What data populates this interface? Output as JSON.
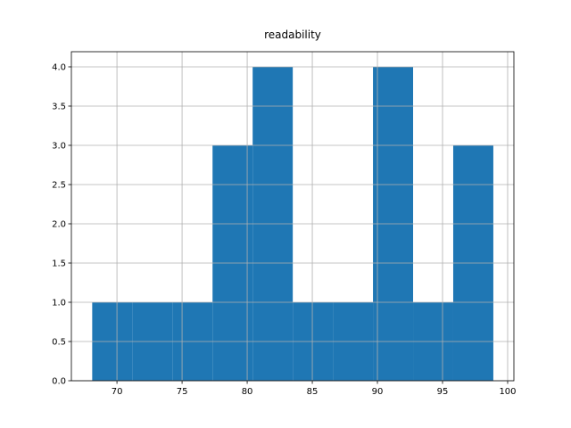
{
  "chart_data": {
    "type": "histogram",
    "title": "readability",
    "bins": [
      68.1,
      71.18,
      74.26,
      77.34,
      80.42,
      83.5,
      86.58,
      89.66,
      92.74,
      95.82,
      98.9
    ],
    "values": [
      1,
      1,
      1,
      3,
      4,
      1,
      1,
      4,
      1,
      3
    ],
    "color": "#1f77b4",
    "xlim": [
      66.5,
      100.48
    ],
    "xticks": [
      70,
      75,
      80,
      85,
      90,
      95,
      100
    ],
    "ylim": [
      0,
      4.193
    ],
    "yticks": [
      {
        "value": 0,
        "label": "0.0"
      },
      0.5,
      {
        "value": 1,
        "label": "1.0"
      },
      1.5,
      {
        "value": 2,
        "label": "2.0"
      },
      2.5,
      {
        "value": 3,
        "label": "3.0"
      },
      3.5,
      {
        "value": 4,
        "label": "4.0"
      }
    ],
    "grid": true
  }
}
